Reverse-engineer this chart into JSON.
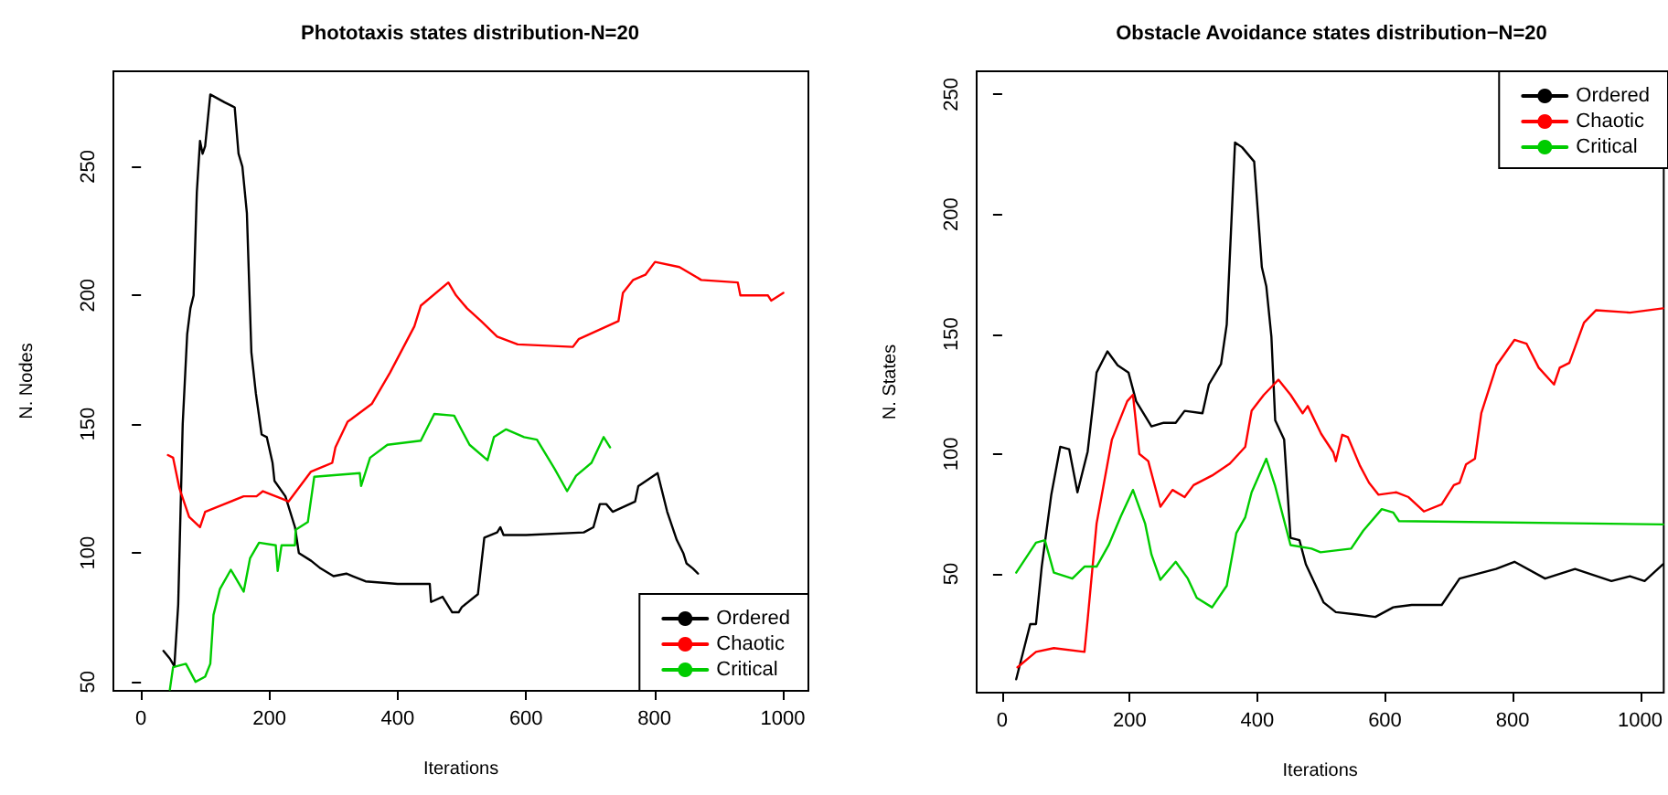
{
  "chart_data": [
    {
      "type": "line",
      "title": "Phototaxis states distribution-N=20",
      "xlabel": "Iterations",
      "ylabel": "N. Nodes",
      "xlim": [
        -43,
        1040
      ],
      "ylim": [
        46.5,
        287
      ],
      "xticks": [
        0,
        200,
        400,
        600,
        800,
        1000
      ],
      "yticks": [
        50,
        100,
        150,
        200,
        250
      ],
      "legend": "bottom right",
      "grid": false,
      "marker": "none",
      "line_style": "solid",
      "series": [
        {
          "name": "Ordered",
          "color": "#000000",
          "x": [
            35,
            45,
            52,
            58,
            65,
            72,
            77,
            82,
            87,
            92,
            96,
            100,
            104,
            108,
            130,
            146,
            152,
            158,
            165,
            172,
            179,
            188,
            196,
            205,
            208,
            225,
            240,
            246,
            265,
            280,
            300,
            320,
            330,
            350,
            400,
            450,
            452,
            470,
            485,
            495,
            500,
            525,
            535,
            555,
            560,
            565,
            600,
            690,
            705,
            715,
            725,
            735,
            770,
            775,
            805,
            820,
            835,
            845,
            850,
            860,
            868
          ],
          "values": [
            62,
            59,
            56,
            80,
            150,
            185,
            195,
            200,
            240,
            260,
            255,
            258,
            268,
            278,
            275,
            273,
            255,
            250,
            232,
            178,
            162,
            146,
            145,
            135,
            128,
            122,
            110,
            100,
            97,
            94,
            91,
            92,
            91,
            89,
            88,
            88,
            81,
            83,
            77,
            77,
            79,
            84,
            106,
            108,
            110,
            107,
            107,
            108,
            110,
            119,
            119,
            116,
            120,
            126,
            131,
            116,
            105,
            100,
            96,
            94,
            92
          ]
        },
        {
          "name": "Chaotic",
          "color": "#ff0000",
          "x": [
            42,
            50,
            60,
            75,
            92,
            100,
            130,
            160,
            180,
            190,
            220,
            230,
            265,
            298,
            303,
            322,
            328,
            360,
            388,
            426,
            436,
            479,
            491,
            508,
            530,
            555,
            587,
            673,
            682,
            744,
            751,
            767,
            786,
            801,
            839,
            873,
            930,
            934,
            977,
            982,
            1001
          ],
          "values": [
            138,
            137,
            125,
            114,
            110,
            116,
            119,
            122,
            122,
            124,
            121,
            120,
            131.6,
            135,
            141,
            151,
            152,
            158,
            170,
            188,
            196,
            205,
            200,
            195,
            190,
            184,
            181,
            180,
            183,
            190,
            201,
            206,
            208,
            213,
            211,
            206,
            205,
            200,
            200,
            198,
            201
          ]
        },
        {
          "name": "Critical",
          "color": "#00cc00",
          "x": [
            45,
            50,
            70,
            85,
            100,
            108,
            113,
            123,
            140,
            160,
            170,
            184,
            210,
            213,
            219,
            240,
            241,
            260,
            270,
            341,
            343,
            357,
            384,
            436,
            457,
            488,
            497,
            512,
            540,
            550,
            569,
            597,
            617,
            645,
            664,
            678,
            702,
            721,
            731
          ],
          "values": [
            47,
            55.7,
            57,
            50,
            52,
            57,
            76,
            86,
            93.5,
            85,
            98,
            104,
            103,
            93,
            103,
            103,
            109,
            112,
            129.6,
            131,
            126,
            137,
            142,
            143.6,
            154,
            153.3,
            149,
            142,
            136,
            145,
            148,
            145,
            144,
            132.5,
            124,
            130,
            135,
            145,
            141
          ]
        }
      ]
    },
    {
      "type": "line",
      "title": "Obstacle Avoidance states distribution−N=20",
      "xlabel": "Iterations",
      "ylabel": "N. States",
      "xlim": [
        -40,
        1037
      ],
      "ylim": [
        0.4,
        259.7
      ],
      "xticks": [
        0,
        200,
        400,
        600,
        800,
        1000
      ],
      "yticks": [
        50,
        100,
        150,
        200,
        250
      ],
      "legend": "top right",
      "grid": false,
      "marker": "none",
      "line_style": "solid",
      "series": [
        {
          "name": "Ordered",
          "color": "#000000",
          "x": [
            22,
            44,
            53,
            62,
            77,
            91,
            105,
            118,
            134,
            143,
            148,
            165,
            181,
            198,
            210,
            234,
            253,
            272,
            286,
            314,
            324,
            343,
            352,
            365,
            376,
            395,
            407,
            414,
            422,
            428,
            442,
            452,
            466,
            476,
            504,
            523,
            556,
            585,
            613,
            642,
            689,
            717,
            774,
            803,
            851,
            898,
            955,
            984,
            1007,
            1036
          ],
          "values": [
            6,
            29,
            29,
            53,
            83,
            103,
            102,
            84,
            101,
            122,
            134,
            142.8,
            137,
            134,
            122,
            111.5,
            113,
            113,
            118,
            117,
            129,
            137.5,
            154,
            230,
            228,
            222,
            178,
            170,
            149,
            114,
            106,
            65,
            64,
            54,
            38,
            34,
            33,
            32,
            36,
            37,
            37,
            48,
            52,
            55,
            48,
            52,
            47,
            49,
            47,
            54
          ]
        },
        {
          "name": "Chaotic",
          "color": "#ff0000",
          "x": [
            24,
            53,
            81,
            129,
            134,
            148,
            172,
            196,
            205,
            215,
            229,
            248,
            267,
            286,
            300,
            329,
            357,
            381,
            391,
            410,
            433,
            452,
            471,
            479,
            500,
            519,
            523,
            533,
            542,
            561,
            575,
            590,
            618,
            637,
            661,
            689,
            708,
            717,
            727,
            741,
            751,
            775,
            803,
            822,
            841,
            865,
            874,
            889,
            912,
            931,
            984,
            1036
          ],
          "values": [
            11,
            17.4,
            19,
            17.4,
            31,
            71,
            106,
            122,
            124.7,
            100,
            97,
            78,
            85,
            82,
            87,
            91,
            96,
            103,
            118,
            124.6,
            131,
            124.7,
            117,
            120,
            108.4,
            100.7,
            97,
            108,
            107,
            95,
            88,
            83,
            84,
            82,
            76,
            79,
            87,
            88,
            95.6,
            98,
            117,
            137,
            147.6,
            146,
            136,
            129,
            136,
            138,
            154.8,
            160,
            159,
            160.8
          ]
        },
        {
          "name": "Critical",
          "color": "#00cc00",
          "x": [
            22,
            53,
            67,
            81,
            110,
            129,
            148,
            167,
            186,
            205,
            224,
            234,
            248,
            272,
            291,
            305,
            329,
            352,
            367,
            381,
            391,
            414,
            428,
            452,
            485,
            499,
            547,
            566,
            595,
            613,
            622,
            1036
          ],
          "values": [
            50.5,
            63,
            64,
            50.5,
            48,
            53,
            53,
            62,
            74,
            85,
            71,
            58,
            47.5,
            55,
            48,
            40,
            36,
            45,
            67,
            73.6,
            84,
            98,
            86.5,
            62,
            60.5,
            59,
            60.5,
            68,
            77,
            75.6,
            72,
            70.6
          ]
        }
      ]
    }
  ]
}
